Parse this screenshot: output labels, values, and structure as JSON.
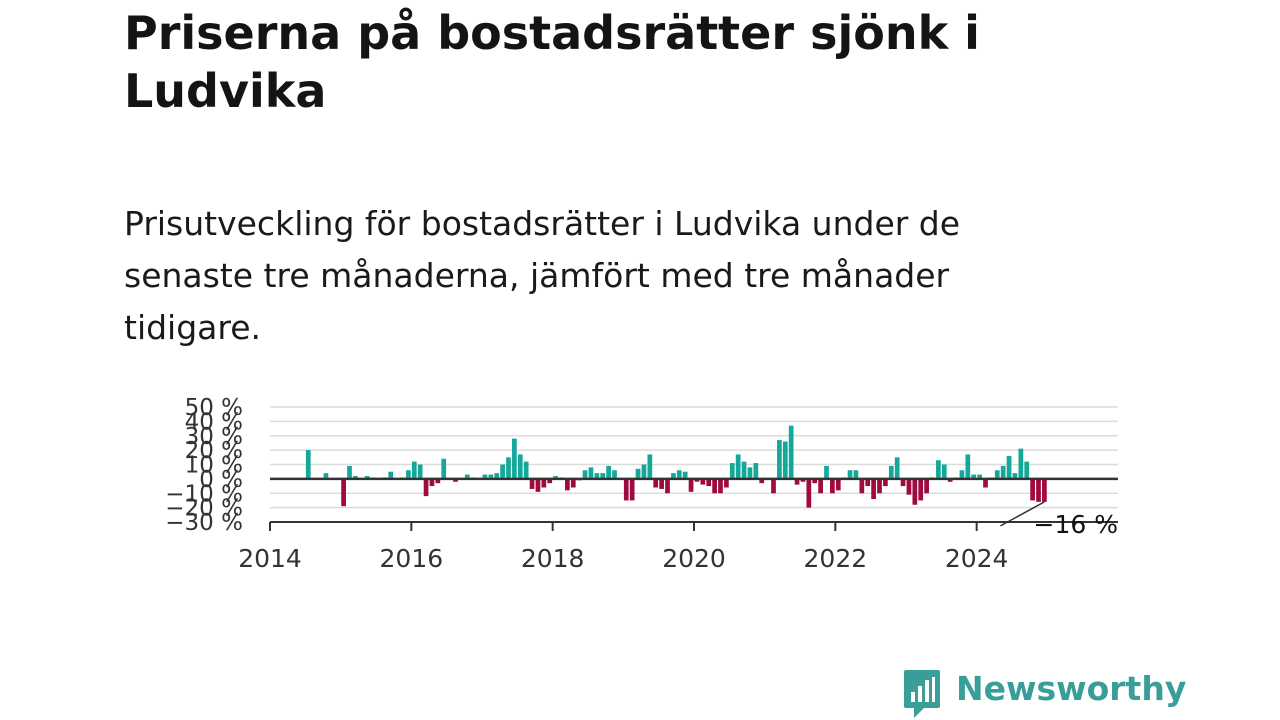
{
  "title": "Priserna på bostadsrätter sjönk i Ludvika",
  "subtitle": "Prisutveckling för bostadsrätter i Ludvika under de senaste tre månaderna, jämfört med tre månader tidigare.",
  "brand": {
    "name": "Newsworthy",
    "icon": "bar-chart-bubble-icon"
  },
  "colors": {
    "positive": "#14a89a",
    "negative": "#a10a40",
    "zero_line": "#333333",
    "grid": "#dcdcdc",
    "text": "#333333"
  },
  "chart_data": {
    "type": "bar",
    "title": "",
    "xlabel": "",
    "ylabel": "",
    "ylim": [
      -30,
      50
    ],
    "yticks": [
      -30,
      -20,
      -10,
      0,
      10,
      20,
      30,
      40,
      50
    ],
    "ytick_labels": [
      "−30 %",
      "−20 %",
      "−10 %",
      "0 %",
      "10 %",
      "20 %",
      "30 %",
      "40 %",
      "50 %"
    ],
    "xlim": [
      "2014-01",
      "2025-12"
    ],
    "xticks": [
      "2014",
      "2016",
      "2018",
      "2020",
      "2022",
      "2024"
    ],
    "grid": true,
    "last_value_label": "−16 %",
    "series": [
      {
        "values": [
          [
            "2014-07",
            20
          ],
          [
            "2014-10",
            4
          ],
          [
            "2015-01",
            -19
          ],
          [
            "2015-02",
            9
          ],
          [
            "2015-03",
            2
          ],
          [
            "2015-05",
            2
          ],
          [
            "2015-06",
            1
          ],
          [
            "2015-08",
            1
          ],
          [
            "2015-09",
            5
          ],
          [
            "2015-11",
            1
          ],
          [
            "2015-12",
            6
          ],
          [
            "2016-01",
            12
          ],
          [
            "2016-02",
            10
          ],
          [
            "2016-03",
            -12
          ],
          [
            "2016-04",
            -5
          ],
          [
            "2016-05",
            -3
          ],
          [
            "2016-06",
            14
          ],
          [
            "2016-08",
            -2
          ],
          [
            "2016-10",
            3
          ],
          [
            "2016-11",
            1
          ],
          [
            "2017-01",
            3
          ],
          [
            "2017-02",
            3
          ],
          [
            "2017-03",
            4
          ],
          [
            "2017-04",
            10
          ],
          [
            "2017-05",
            15
          ],
          [
            "2017-06",
            28
          ],
          [
            "2017-07",
            17
          ],
          [
            "2017-08",
            12
          ],
          [
            "2017-09",
            -7
          ],
          [
            "2017-10",
            -9
          ],
          [
            "2017-11",
            -6
          ],
          [
            "2017-12",
            -3
          ],
          [
            "2018-01",
            2
          ],
          [
            "2018-02",
            1
          ],
          [
            "2018-03",
            -8
          ],
          [
            "2018-04",
            -6
          ],
          [
            "2018-05",
            -1
          ],
          [
            "2018-06",
            6
          ],
          [
            "2018-07",
            8
          ],
          [
            "2018-08",
            4
          ],
          [
            "2018-09",
            4
          ],
          [
            "2018-10",
            9
          ],
          [
            "2018-11",
            6
          ],
          [
            "2019-01",
            -15
          ],
          [
            "2019-02",
            -15
          ],
          [
            "2019-03",
            7
          ],
          [
            "2019-04",
            10
          ],
          [
            "2019-05",
            17
          ],
          [
            "2019-06",
            -6
          ],
          [
            "2019-07",
            -7
          ],
          [
            "2019-08",
            -10
          ],
          [
            "2019-09",
            4
          ],
          [
            "2019-10",
            6
          ],
          [
            "2019-11",
            5
          ],
          [
            "2019-12",
            -9
          ],
          [
            "2020-01",
            -2
          ],
          [
            "2020-02",
            -4
          ],
          [
            "2020-03",
            -5
          ],
          [
            "2020-04",
            -10
          ],
          [
            "2020-05",
            -10
          ],
          [
            "2020-06",
            -6
          ],
          [
            "2020-07",
            11
          ],
          [
            "2020-08",
            17
          ],
          [
            "2020-09",
            12
          ],
          [
            "2020-10",
            8
          ],
          [
            "2020-11",
            11
          ],
          [
            "2020-12",
            -3
          ],
          [
            "2021-02",
            -10
          ],
          [
            "2021-03",
            27
          ],
          [
            "2021-04",
            26
          ],
          [
            "2021-05",
            37
          ],
          [
            "2021-06",
            -4
          ],
          [
            "2021-07",
            -2
          ],
          [
            "2021-08",
            -20
          ],
          [
            "2021-09",
            -3
          ],
          [
            "2021-10",
            -10
          ],
          [
            "2021-11",
            9
          ],
          [
            "2021-12",
            -10
          ],
          [
            "2022-01",
            -8
          ],
          [
            "2022-02",
            1
          ],
          [
            "2022-03",
            6
          ],
          [
            "2022-04",
            6
          ],
          [
            "2022-05",
            -10
          ],
          [
            "2022-06",
            -5
          ],
          [
            "2022-07",
            -14
          ],
          [
            "2022-08",
            -10
          ],
          [
            "2022-09",
            -5
          ],
          [
            "2022-10",
            9
          ],
          [
            "2022-11",
            15
          ],
          [
            "2022-12",
            -5
          ],
          [
            "2023-01",
            -11
          ],
          [
            "2023-02",
            -18
          ],
          [
            "2023-03",
            -15
          ],
          [
            "2023-04",
            -10
          ],
          [
            "2023-05",
            1
          ],
          [
            "2023-06",
            13
          ],
          [
            "2023-07",
            10
          ],
          [
            "2023-08",
            -2
          ],
          [
            "2023-09",
            1
          ],
          [
            "2023-10",
            6
          ],
          [
            "2023-11",
            17
          ],
          [
            "2023-12",
            3
          ],
          [
            "2024-01",
            3
          ],
          [
            "2024-02",
            -6
          ],
          [
            "2024-03",
            1
          ],
          [
            "2024-04",
            6
          ],
          [
            "2024-05",
            9
          ],
          [
            "2024-06",
            16
          ],
          [
            "2024-07",
            4
          ],
          [
            "2024-08",
            21
          ],
          [
            "2024-09",
            12
          ],
          [
            "2024-10",
            -15
          ],
          [
            "2024-11",
            -16
          ],
          [
            "2024-12",
            -16
          ]
        ]
      }
    ]
  }
}
